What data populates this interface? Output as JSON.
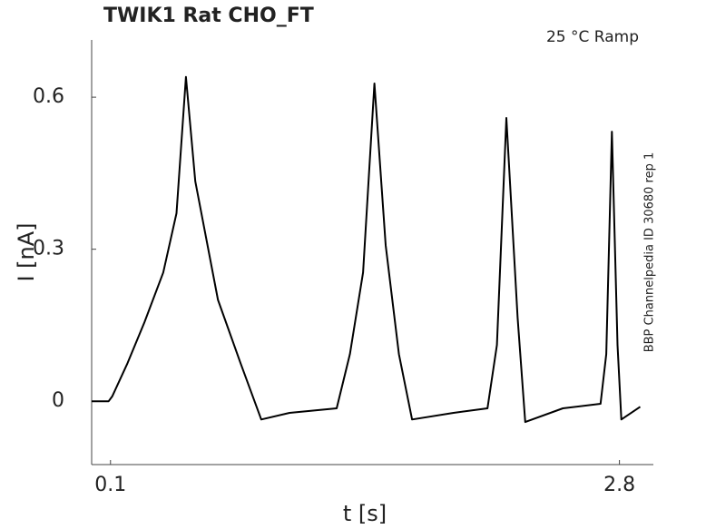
{
  "chart_data": {
    "type": "line",
    "title": "TWIK1  Rat  CHO_FT",
    "annotation": "25 °C  Ramp",
    "side_note": "BBP Channelpedia ID 30680 rep 1",
    "xlabel": "t [s]",
    "ylabel": "I [nA]",
    "x": [
      0.0,
      0.09,
      0.11,
      0.19,
      0.28,
      0.38,
      0.45,
      0.5,
      0.55,
      0.67,
      0.79,
      0.9,
      1.05,
      1.3,
      1.37,
      1.44,
      1.5,
      1.56,
      1.63,
      1.7,
      1.92,
      2.1,
      2.15,
      2.2,
      2.26,
      2.3,
      2.5,
      2.7,
      2.73,
      2.76,
      2.79,
      2.81,
      2.91
    ],
    "values": [
      0.0,
      0.0,
      0.01,
      0.075,
      0.156,
      0.254,
      0.371,
      0.64,
      0.434,
      0.2,
      0.075,
      -0.036,
      -0.023,
      -0.014,
      0.093,
      0.254,
      0.627,
      0.308,
      0.093,
      -0.036,
      -0.023,
      -0.014,
      0.111,
      0.559,
      0.165,
      -0.041,
      -0.014,
      -0.005,
      0.093,
      0.532,
      0.111,
      -0.036,
      -0.011
    ],
    "color": "#000000",
    "xlim": [
      0,
      2.98
    ],
    "ylim": [
      -0.125,
      0.713
    ],
    "xticks": [
      0.1,
      2.8
    ],
    "yticks": [
      0,
      0.3,
      0.6
    ]
  }
}
